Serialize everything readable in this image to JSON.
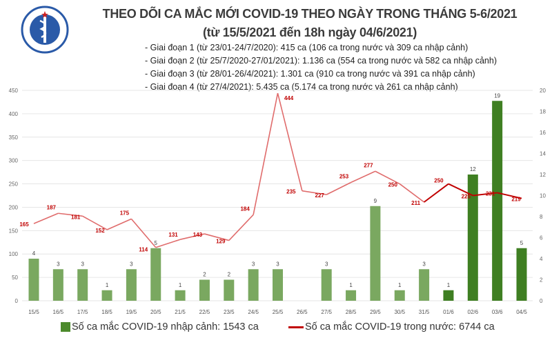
{
  "header": {
    "logo_text": "BỘ Y TẾ",
    "logo_subtext": "MINISTRY OF HEALTH",
    "title": "THEO DÕI CA MẮC MỚI COVID-19 THEO NGÀY TRONG THÁNG 5-6/2021",
    "subtitle": "(từ 15/5/2021 đến 18h ngày 04/6/2021)",
    "phases": [
      "- Giai đoạn 1 (từ 23/01-24/7/2020): 415 ca (106 ca trong nước và 309 ca nhập cảnh)",
      "- Giai đoạn 2 (từ 25/7/2020-27/01/2021): 1.136 ca (554 ca trong nước và 582 ca nhập cảnh)",
      "- Giai đoạn 3 (từ 28/01-26/4/2021): 1.301 ca (910 ca trong nước và 391 ca nhập cảnh)",
      "- Giai đoạn 4 (từ 27/4/2021): 5.435 ca (5.174 ca trong nước và 261 ca nhập cảnh)"
    ]
  },
  "chart_data": {
    "type": "bar+line",
    "categories": [
      "15/5",
      "16/5",
      "17/5",
      "18/5",
      "19/5",
      "20/5",
      "21/5",
      "22/5",
      "23/5",
      "24/5",
      "25/5",
      "26/5",
      "27/5",
      "28/5",
      "29/5",
      "30/5",
      "31/5",
      "01/6",
      "02/6",
      "03/6",
      "04/5"
    ],
    "series": [
      {
        "name": "Số ca mắc COVID-19 nhập cảnh: 1543 ca",
        "type": "bar",
        "axis": "right",
        "color": "#7aa860",
        "highlight_color": "#3f7f22",
        "highlight_from": "01/6",
        "values": [
          4,
          3,
          3,
          1,
          3,
          5,
          1,
          2,
          2,
          3,
          3,
          0,
          3,
          1,
          9,
          1,
          3,
          1,
          12,
          19,
          5
        ]
      },
      {
        "name": "Số ca mắc COVID-19 trong nước: 6744 ca",
        "type": "line",
        "axis": "left",
        "color": "#e06c6c",
        "highlight_color": "#c00000",
        "highlight_from": "31/5",
        "values": [
          165,
          187,
          181,
          152,
          175,
          114,
          131,
          143,
          129,
          184,
          444,
          235,
          227,
          253,
          277,
          250,
          211,
          250,
          225,
          231,
          219
        ]
      }
    ],
    "left_axis": {
      "range": [
        0,
        450
      ],
      "ticks": [
        0,
        50,
        100,
        150,
        200,
        250,
        300,
        350,
        400,
        450
      ]
    },
    "right_axis": {
      "range": [
        0,
        20
      ],
      "ticks": [
        0,
        2,
        4,
        6,
        8,
        10,
        12,
        14,
        16,
        18,
        20
      ]
    },
    "grid": true,
    "legend": "bottom"
  }
}
